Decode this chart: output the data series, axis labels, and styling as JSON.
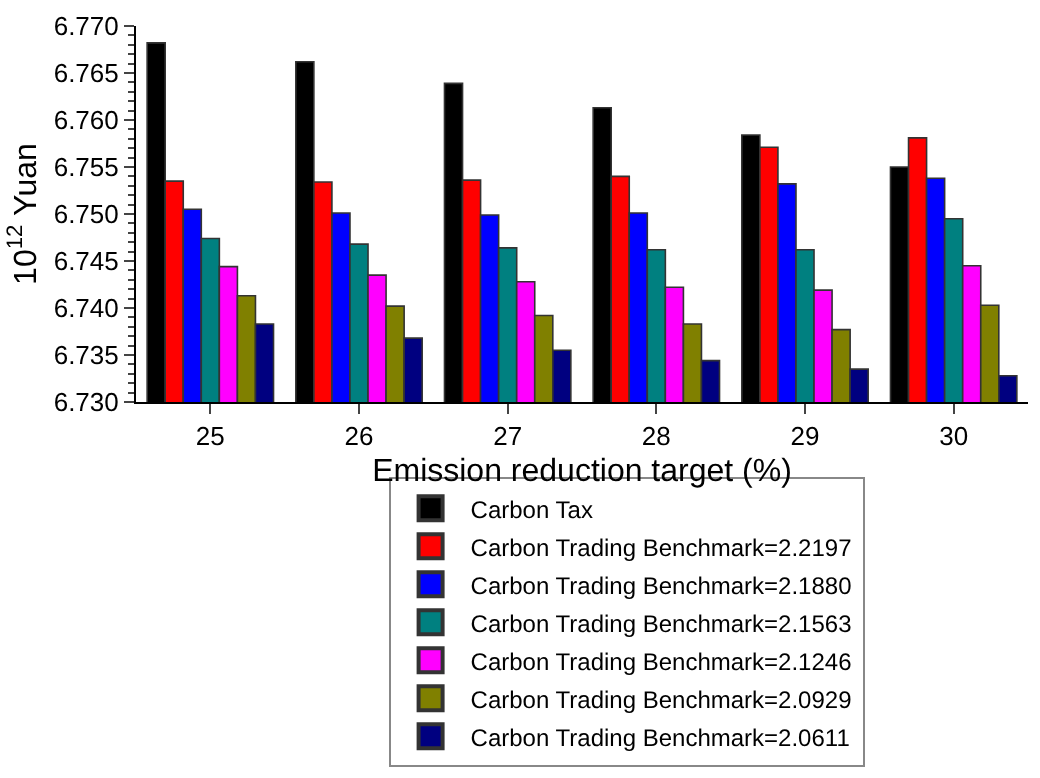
{
  "chart_data": {
    "type": "bar",
    "xlabel": "Emission reduction target (%)",
    "ylabel": "10$^{12}$ Yuan",
    "categories": [
      "25",
      "26",
      "27",
      "28",
      "29",
      "30"
    ],
    "ylim": [
      6.73,
      6.77
    ],
    "yticks": [
      {
        "value": 6.73,
        "label": "6.730"
      },
      {
        "value": 6.735,
        "label": "6.735"
      },
      {
        "value": 6.74,
        "label": "6.740"
      },
      {
        "value": 6.745,
        "label": "6.745"
      },
      {
        "value": 6.75,
        "label": "6.750"
      },
      {
        "value": 6.755,
        "label": "6.755"
      },
      {
        "value": 6.76,
        "label": "6.760"
      },
      {
        "value": 6.765,
        "label": "6.765"
      },
      {
        "value": 6.77,
        "label": "6.770"
      }
    ],
    "legend": "bottom",
    "series": [
      {
        "name": "Carbon Tax",
        "color": "#000000",
        "values": [
          6.7682,
          6.7662,
          6.7639,
          6.7613,
          6.7584,
          6.755
        ]
      },
      {
        "name": "Carbon Trading Benchmark=2.2197",
        "color": "#ff0000",
        "values": [
          6.7535,
          6.7534,
          6.7536,
          6.754,
          6.7571,
          6.7581
        ]
      },
      {
        "name": "Carbon Trading Benchmark=2.1880",
        "color": "#0000ff",
        "values": [
          6.7505,
          6.7501,
          6.7499,
          6.7501,
          6.7532,
          6.7538
        ]
      },
      {
        "name": "Carbon Trading Benchmark=2.1563",
        "color": "#008080",
        "values": [
          6.7474,
          6.7468,
          6.7464,
          6.7462,
          6.7462,
          6.7495
        ]
      },
      {
        "name": "Carbon Trading Benchmark=2.1246",
        "color": "#ff00ff",
        "values": [
          6.7444,
          6.7435,
          6.7428,
          6.7422,
          6.7419,
          6.7445
        ]
      },
      {
        "name": "Carbon Trading Benchmark=2.0929",
        "color": "#808000",
        "values": [
          6.7413,
          6.7402,
          6.7392,
          6.7383,
          6.7377,
          6.7403
        ]
      },
      {
        "name": "Carbon Trading Benchmark=2.0611",
        "color": "#000080",
        "values": [
          6.7383,
          6.7368,
          6.7355,
          6.7344,
          6.7335,
          6.7328
        ]
      }
    ]
  }
}
